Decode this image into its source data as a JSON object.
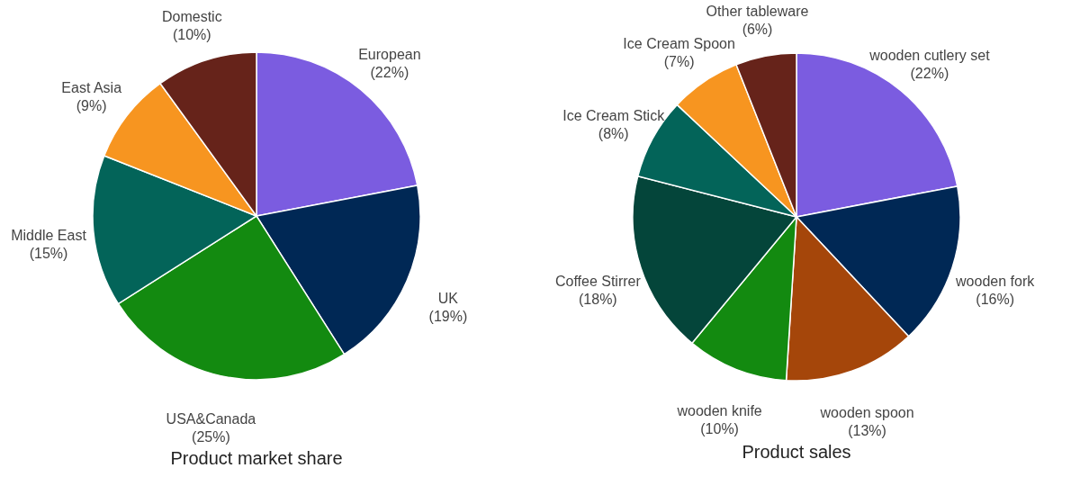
{
  "chart_data": [
    {
      "type": "pie",
      "title": "Product market share",
      "categories": [
        "European",
        "UK",
        "USA&Canada",
        "Middle East",
        "East Asia",
        "Domestic"
      ],
      "values": [
        22,
        19,
        25,
        15,
        9,
        10
      ],
      "value_labels": [
        "(22%)",
        "(19%)",
        "(25%)",
        "(15%)",
        "(9%)",
        "(10%)"
      ],
      "colors": [
        "#7b5ce0",
        "#002855",
        "#138a10",
        "#036459",
        "#f79520",
        "#66231a"
      ]
    },
    {
      "type": "pie",
      "title": "Product sales",
      "categories": [
        "wooden cutlery set",
        "wooden fork",
        "wooden spoon",
        "wooden knife",
        "Coffee Stirrer",
        "Ice Cream Stick",
        "Ice Cream Spoon",
        "Other tableware"
      ],
      "values": [
        22,
        16,
        13,
        10,
        18,
        8,
        7,
        6
      ],
      "value_labels": [
        "(22%)",
        "(16%)",
        "(13%)",
        "(10%)",
        "(18%)",
        "(8%)",
        "(7%)",
        "(6%)"
      ],
      "colors": [
        "#7b5ce0",
        "#002855",
        "#a5460a",
        "#138a10",
        "#04453a",
        "#036459",
        "#f79520",
        "#66231a"
      ]
    }
  ]
}
